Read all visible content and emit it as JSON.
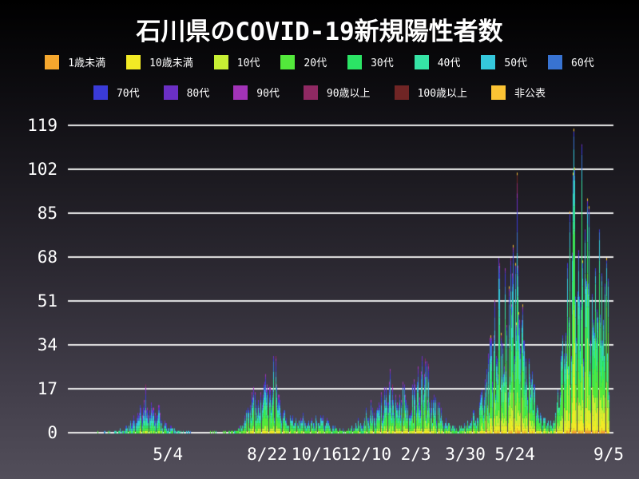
{
  "chart_data": {
    "type": "bar",
    "stacked": true,
    "title": "石川県のCOVID-19新規陽性者数",
    "xlabel": "",
    "ylabel": "",
    "ylim": [
      0,
      119
    ],
    "yticks": [
      0,
      17,
      34,
      51,
      68,
      85,
      102,
      119
    ],
    "xticks": [
      {
        "label": "5/4",
        "day": 111
      },
      {
        "label": "8/22",
        "day": 221
      },
      {
        "label": "10/16",
        "day": 276
      },
      {
        "label": "12/10",
        "day": 331
      },
      {
        "label": "2/3",
        "day": 386
      },
      {
        "label": "3/30",
        "day": 441
      },
      {
        "label": "5/24",
        "day": 496
      },
      {
        "label": "9/5",
        "day": 600
      }
    ],
    "days_total": 601,
    "legend_row1_count": 8,
    "groups": [
      {
        "name": "1歳未満",
        "color": "#F5A72E"
      },
      {
        "name": "10歳未満",
        "color": "#F2EA25"
      },
      {
        "name": "10代",
        "color": "#C7EF34"
      },
      {
        "name": "20代",
        "color": "#53E93B"
      },
      {
        "name": "30代",
        "color": "#2BE465"
      },
      {
        "name": "40代",
        "color": "#36E3A5"
      },
      {
        "name": "50代",
        "color": "#35C8DC"
      },
      {
        "name": "60代",
        "color": "#3873D2"
      },
      {
        "name": "70代",
        "color": "#3A3BD8"
      },
      {
        "name": "80代",
        "color": "#6B2FC4"
      },
      {
        "name": "90代",
        "color": "#A233B8"
      },
      {
        "name": "90歳以上",
        "color": "#8F2963"
      },
      {
        "name": "100歳以上",
        "color": "#702525"
      },
      {
        "name": "非公表",
        "color": "#FBC334"
      }
    ],
    "daily_total_envelope": [
      [
        0,
        0
      ],
      [
        28,
        0
      ],
      [
        33,
        0.5
      ],
      [
        40,
        0.4
      ],
      [
        48,
        0.5
      ],
      [
        56,
        1
      ],
      [
        64,
        2.5
      ],
      [
        72,
        6
      ],
      [
        79,
        11
      ],
      [
        83,
        15
      ],
      [
        86,
        19
      ],
      [
        90,
        11
      ],
      [
        98,
        13
      ],
      [
        104,
        7
      ],
      [
        110,
        4
      ],
      [
        118,
        2
      ],
      [
        126,
        1
      ],
      [
        134,
        0.4
      ],
      [
        142,
        0.6
      ],
      [
        152,
        0.3
      ],
      [
        168,
        0.3
      ],
      [
        180,
        0.8
      ],
      [
        188,
        2
      ],
      [
        196,
        6
      ],
      [
        203,
        13
      ],
      [
        210,
        21
      ],
      [
        217,
        24
      ],
      [
        222,
        17
      ],
      [
        230,
        30
      ],
      [
        236,
        13
      ],
      [
        243,
        8
      ],
      [
        252,
        6
      ],
      [
        258,
        9
      ],
      [
        265,
        4
      ],
      [
        274,
        6
      ],
      [
        283,
        7
      ],
      [
        292,
        4
      ],
      [
        302,
        2
      ],
      [
        312,
        2
      ],
      [
        320,
        4
      ],
      [
        328,
        8
      ],
      [
        334,
        13
      ],
      [
        341,
        11
      ],
      [
        349,
        16
      ],
      [
        358,
        23
      ],
      [
        364,
        15
      ],
      [
        371,
        19
      ],
      [
        378,
        13
      ],
      [
        386,
        21
      ],
      [
        393,
        30
      ],
      [
        399,
        25
      ],
      [
        406,
        17
      ],
      [
        413,
        11
      ],
      [
        420,
        5
      ],
      [
        428,
        3
      ],
      [
        436,
        3
      ],
      [
        443,
        5
      ],
      [
        449,
        9
      ],
      [
        455,
        13
      ],
      [
        461,
        20
      ],
      [
        467,
        30
      ],
      [
        472,
        45
      ],
      [
        478,
        72
      ],
      [
        484,
        58
      ],
      [
        491,
        68
      ],
      [
        498,
        101
      ],
      [
        503,
        52
      ],
      [
        508,
        36
      ],
      [
        514,
        24
      ],
      [
        520,
        14
      ],
      [
        526,
        8
      ],
      [
        532,
        5
      ],
      [
        537,
        5
      ],
      [
        541,
        12
      ],
      [
        545,
        28
      ],
      [
        550,
        48
      ],
      [
        556,
        75
      ],
      [
        561,
        118
      ],
      [
        566,
        92
      ],
      [
        570,
        112
      ],
      [
        575,
        85
      ],
      [
        581,
        90
      ],
      [
        586,
        78
      ],
      [
        591,
        72
      ],
      [
        596,
        66
      ],
      [
        600,
        58
      ]
    ],
    "peaks": [
      {
        "day": 86,
        "value": 19
      },
      {
        "day": 230,
        "value": 30
      },
      {
        "day": 393,
        "value": 30
      },
      {
        "day": 498,
        "value": 101,
        "mix": [
          0.01,
          0.04,
          0.07,
          0.2,
          0.14,
          0.12,
          0.12,
          0.09,
          0.06,
          0.05,
          0.03,
          0.07,
          0.05,
          0.01
        ]
      },
      {
        "day": 561,
        "value": 118
      },
      {
        "day": 570,
        "value": 112
      }
    ],
    "age_mix_keypoints": [
      {
        "day": 0,
        "mix": [
          0.005,
          0.02,
          0.04,
          0.12,
          0.12,
          0.14,
          0.16,
          0.13,
          0.11,
          0.08,
          0.04,
          0.02,
          0.005,
          0.01
        ]
      },
      {
        "day": 110,
        "mix": [
          0.005,
          0.02,
          0.04,
          0.13,
          0.12,
          0.14,
          0.16,
          0.13,
          0.1,
          0.08,
          0.04,
          0.02,
          0.005,
          0.01
        ]
      },
      {
        "day": 220,
        "mix": [
          0.005,
          0.04,
          0.07,
          0.25,
          0.16,
          0.13,
          0.12,
          0.09,
          0.06,
          0.045,
          0.025,
          0.012,
          0.003,
          0.008
        ]
      },
      {
        "day": 380,
        "mix": [
          0.01,
          0.05,
          0.08,
          0.2,
          0.15,
          0.14,
          0.12,
          0.1,
          0.07,
          0.05,
          0.03,
          0.015,
          0.005,
          0.01
        ]
      },
      {
        "day": 480,
        "mix": [
          0.01,
          0.06,
          0.1,
          0.25,
          0.18,
          0.15,
          0.11,
          0.07,
          0.04,
          0.022,
          0.012,
          0.006,
          0.002,
          0.008
        ]
      },
      {
        "day": 545,
        "mix": [
          0.012,
          0.08,
          0.13,
          0.27,
          0.19,
          0.15,
          0.09,
          0.04,
          0.02,
          0.008,
          0.003,
          0.001,
          0.0,
          0.006
        ]
      },
      {
        "day": 600,
        "mix": [
          0.015,
          0.1,
          0.15,
          0.27,
          0.19,
          0.15,
          0.08,
          0.025,
          0.01,
          0.004,
          0.001,
          0.0,
          0.0,
          0.005
        ]
      }
    ],
    "colors": {
      "grid": "#ECECEC",
      "text": "#FFFFFF",
      "bg_top": "#000000",
      "bg_bottom": "#524E5A"
    },
    "layout_hints": {
      "grid": "horizontal-only",
      "legend_position": "top",
      "bars": "1px daily stacked bars"
    }
  }
}
